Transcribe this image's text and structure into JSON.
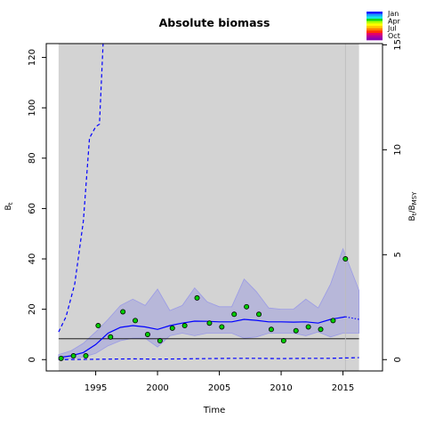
{
  "chart_data": {
    "type": "line",
    "title": "Absolute biomass",
    "xlabel": "Time",
    "ylabel": "Bt",
    "ylabel_right": "Bt/BMSY",
    "xlim": [
      1991.0,
      2018.2
    ],
    "ylim": [
      -4.5,
      125.5
    ],
    "ylim_right": [
      -0.54,
      15.06
    ],
    "xticks": [
      1995,
      2000,
      2005,
      2010,
      2015
    ],
    "yticks": [
      0,
      20,
      40,
      60,
      80,
      100,
      120
    ],
    "yticks_right": [
      0,
      5,
      10,
      15
    ],
    "shaded_region_x": [
      1992,
      2016.3
    ],
    "vline_x": 2015.2,
    "hline_y": 8.3,
    "series": [
      {
        "role": "fit",
        "x": [
          1992,
          1993,
          1994,
          1995,
          1996,
          1997,
          1998,
          1999,
          2000,
          2001,
          2002,
          2003,
          2004,
          2005,
          2006,
          2007,
          2008,
          2009,
          2010,
          2011,
          2012,
          2013,
          2014,
          2015.2
        ],
        "values": [
          0.8,
          1.5,
          2.8,
          6.0,
          10.5,
          12.8,
          13.5,
          13.0,
          12.0,
          13.5,
          14.5,
          15.3,
          15.2,
          15.0,
          15.0,
          16.0,
          15.6,
          15.0,
          15.0,
          14.9,
          15.0,
          14.5,
          16.0,
          17.0
        ]
      },
      {
        "role": "fit-upper-ci",
        "x": [
          1992,
          1993,
          1994,
          1995,
          1996,
          1997,
          1998,
          1999,
          2000,
          2001,
          2002,
          2003,
          2004,
          2005,
          2006,
          2007,
          2008,
          2009,
          2010,
          2011,
          2012,
          2013,
          2014,
          2015,
          2016.3
        ],
        "values": [
          2.0,
          3.5,
          6.5,
          11.0,
          16.0,
          21.5,
          24.0,
          21.5,
          28.0,
          19.5,
          21.5,
          28.5,
          23.0,
          21.0,
          21.0,
          32.0,
          27.0,
          20.5,
          20.0,
          20.0,
          24.0,
          20.5,
          30.0,
          44.0,
          27.5
        ]
      },
      {
        "role": "fit-lower-ci",
        "x": [
          1992,
          1993,
          1994,
          1995,
          1996,
          1997,
          1998,
          1999,
          2000,
          2001,
          2002,
          2003,
          2004,
          2005,
          2006,
          2007,
          2008,
          2009,
          2010,
          2011,
          2012,
          2013,
          2014,
          2015,
          2016.3
        ],
        "values": [
          0.0,
          0.5,
          1.0,
          2.5,
          5.5,
          7.5,
          8.5,
          8.5,
          5.0,
          9.5,
          10.5,
          9.5,
          10.5,
          10.5,
          10.5,
          8.5,
          9.0,
          10.5,
          10.5,
          10.5,
          9.5,
          11.0,
          9.0,
          10.5,
          10.5
        ]
      },
      {
        "role": "upper-dashed-bound",
        "x": [
          1992,
          1992.6,
          1993.3,
          1994.0,
          1994.5,
          1995.0,
          1995.3,
          1995.6
        ],
        "values": [
          11.0,
          17.0,
          30.0,
          55.0,
          88.0,
          92.5,
          93.5,
          125.5
        ]
      },
      {
        "role": "lower-dashed-bound",
        "x": [
          1992,
          1994,
          1996,
          1998,
          2000,
          2002,
          2004,
          2006,
          2008,
          2010,
          2012,
          2014,
          2016.3
        ],
        "values": [
          0.0,
          0.1,
          0.2,
          0.3,
          0.2,
          0.3,
          0.4,
          0.5,
          0.5,
          0.4,
          0.5,
          0.5,
          0.8
        ]
      },
      {
        "role": "prediction",
        "x": [
          2015.2,
          2016.3
        ],
        "values": [
          17.0,
          16.0
        ]
      },
      {
        "role": "observations",
        "x": [
          1992.2,
          1993.2,
          1994.2,
          1995.2,
          1996.2,
          1997.2,
          1998.2,
          1999.2,
          2000.2,
          2001.2,
          2002.2,
          2003.2,
          2004.2,
          2005.2,
          2006.2,
          2007.2,
          2008.2,
          2009.2,
          2010.2,
          2011.2,
          2012.2,
          2013.2,
          2014.2,
          2015.2
        ],
        "values": [
          0.5,
          1.5,
          1.5,
          13.5,
          9.0,
          19.0,
          15.5,
          10.0,
          7.5,
          12.5,
          13.5,
          24.5,
          14.5,
          13.0,
          18.0,
          21.0,
          18.0,
          12.0,
          7.5,
          11.5,
          13.0,
          12.0,
          15.5,
          40.0
        ]
      }
    ],
    "legend": {
      "position": "top-right",
      "labels": [
        "Jan",
        "Apr",
        "Jul",
        "Oct"
      ],
      "color_stops": [
        "#1a1aff",
        "#1aa0ff",
        "#19e6e6",
        "#19d919",
        "#b3ff00",
        "#ffff00",
        "#ffcc00",
        "#ff8000",
        "#ff3300",
        "#e60066",
        "#b30099",
        "#8c00b3"
      ]
    },
    "colors": {
      "panel_bg": "#d3d3d3",
      "ci_band": "#b7b7d9",
      "ci_edge": "#9b9be6",
      "fit_line": "#0000ff",
      "point_fill": "#00cc00",
      "hline": "#000000",
      "vline": "#bbbbbb"
    }
  }
}
